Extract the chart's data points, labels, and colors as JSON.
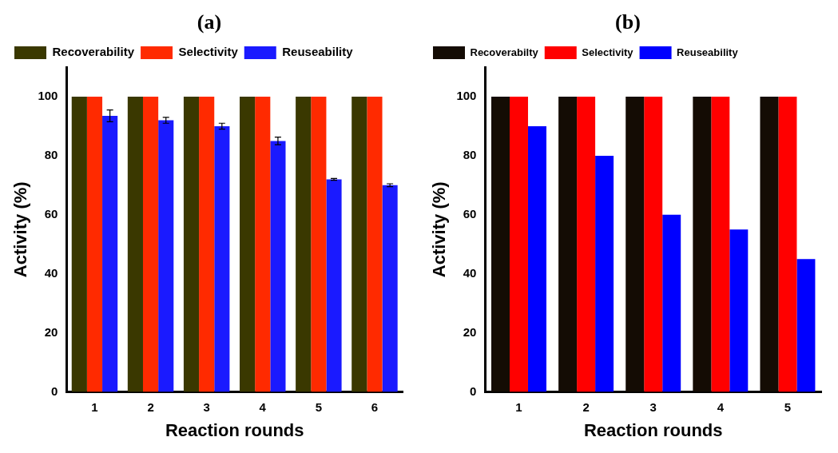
{
  "chart_data": [
    {
      "type": "bar",
      "title": "(a)",
      "categories": [
        "1",
        "2",
        "3",
        "4",
        "5",
        "6"
      ],
      "xlabel": "Reaction rounds",
      "ylabel": "Activity (%)",
      "ylim": [
        0,
        110
      ],
      "yticks": [
        0,
        20,
        40,
        60,
        80,
        100
      ],
      "legend": "top",
      "series": [
        {
          "name": "Recoverability",
          "color": "#3a3800",
          "values": [
            100,
            100,
            100,
            100,
            100,
            100
          ]
        },
        {
          "name": "Selectivity",
          "color": "#ff2a00",
          "values": [
            100,
            100,
            100,
            100,
            100,
            100
          ]
        },
        {
          "name": "Reuseability",
          "color": "#1a1aff",
          "values": [
            93.5,
            92,
            90,
            85,
            72,
            70
          ],
          "errors": [
            2,
            1,
            1,
            1.3,
            0.3,
            0.5
          ]
        }
      ]
    },
    {
      "type": "bar",
      "title": "(b)",
      "categories": [
        "1",
        "2",
        "3",
        "4",
        "5"
      ],
      "xlabel": "Reaction rounds",
      "ylabel": "Activity (%)",
      "ylim": [
        0,
        110
      ],
      "yticks": [
        0,
        20,
        40,
        60,
        80,
        100
      ],
      "legend": "top",
      "series": [
        {
          "name": "Recoverabilty",
          "color": "#140c04",
          "values": [
            100,
            100,
            100,
            100,
            100
          ]
        },
        {
          "name": "Selectivity",
          "color": "#ff0000",
          "values": [
            100,
            100,
            100,
            100,
            100
          ]
        },
        {
          "name": "Reuseability",
          "color": "#0000ff",
          "values": [
            90,
            80,
            60,
            55,
            45
          ]
        }
      ]
    }
  ]
}
